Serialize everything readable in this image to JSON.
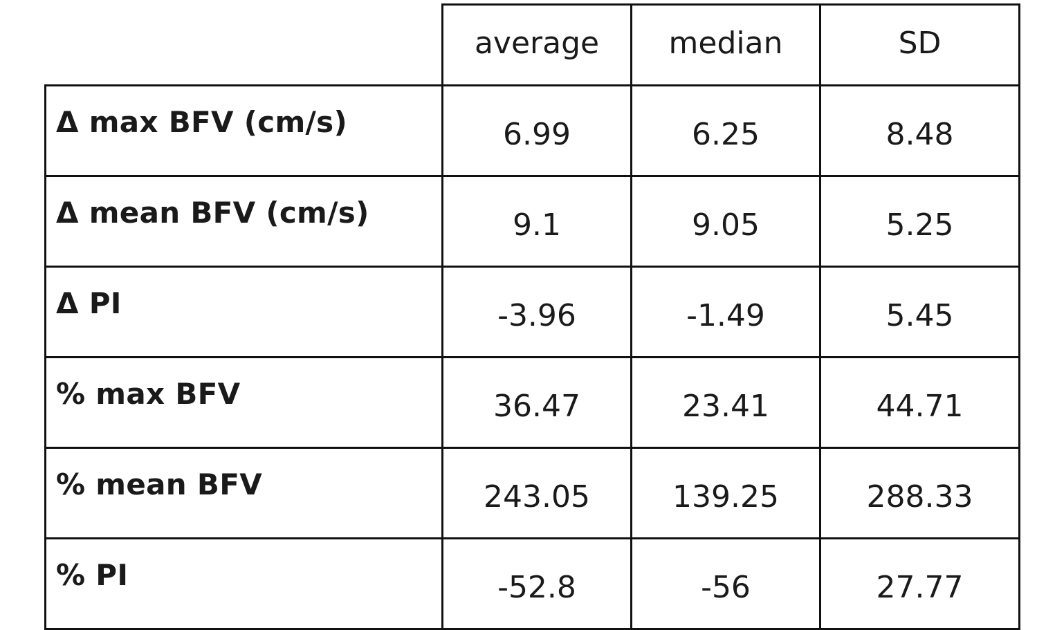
{
  "table": {
    "columns": [
      "",
      "average",
      "median",
      "SD"
    ],
    "rows": [
      {
        "label": "Δ max BFV (cm/s)",
        "average": "6.99",
        "median": "6.25",
        "sd": "8.48"
      },
      {
        "label": "Δ mean BFV (cm/s)",
        "average": "9.1",
        "median": "9.05",
        "sd": "5.25"
      },
      {
        "label": "Δ PI",
        "average": "-3.96",
        "median": "-1.49",
        "sd": "5.45"
      },
      {
        "label": "% max BFV",
        "average": "36.47",
        "median": "23.41",
        "sd": "44.71"
      },
      {
        "label": "% mean BFV",
        "average": "243.05",
        "median": "139.25",
        "sd": "288.33"
      },
      {
        "label": "% PI",
        "average": "-52.8",
        "median": "-56",
        "sd": "27.77"
      }
    ]
  }
}
